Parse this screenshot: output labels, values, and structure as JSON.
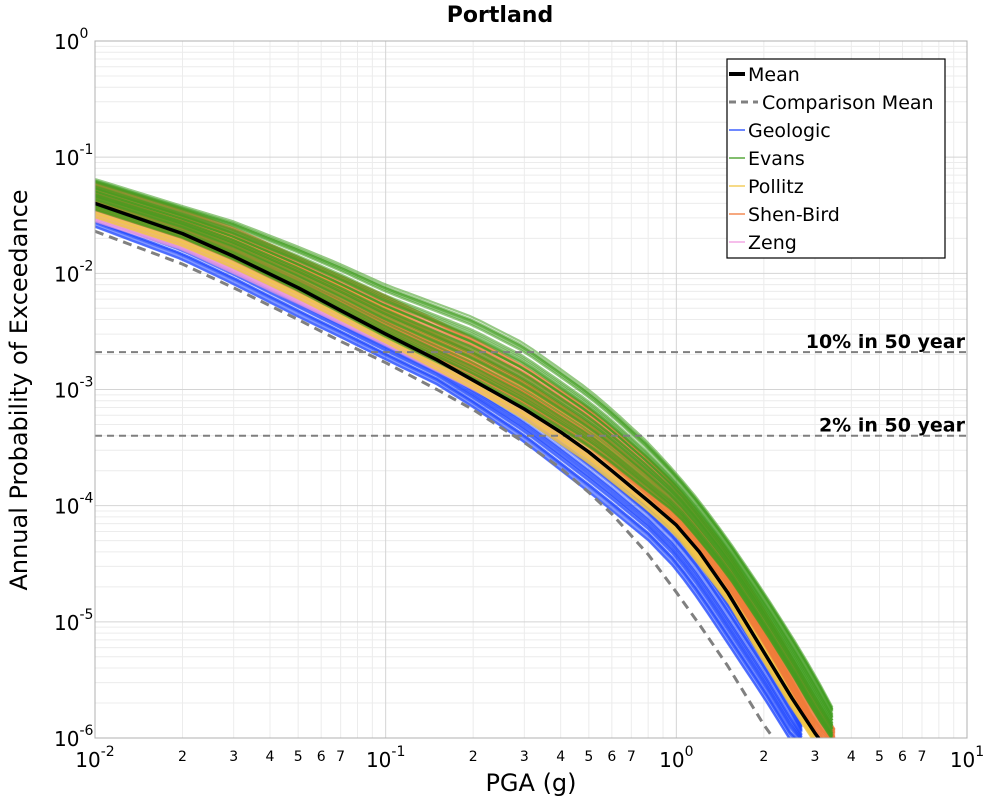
{
  "chart_data": {
    "type": "line",
    "title": "Portland",
    "xlabel": "PGA (g)",
    "ylabel": "Annual Probability of Exceedance",
    "x_scale": "log",
    "y_scale": "log",
    "xlim": [
      0.01,
      10
    ],
    "ylim": [
      1e-06,
      1
    ],
    "grid": true,
    "legend_position": "top-right",
    "x_major_ticks": [
      {
        "base": "10",
        "exp": "-2",
        "value": 0.01
      },
      {
        "base": "10",
        "exp": "-1",
        "value": 0.1
      },
      {
        "base": "10",
        "exp": "0",
        "value": 1
      },
      {
        "base": "10",
        "exp": "1",
        "value": 10
      }
    ],
    "x_minor_tick_labels": [
      "2",
      "3",
      "4",
      "5",
      "6",
      "7"
    ],
    "y_major_ticks": [
      {
        "base": "10",
        "exp": "0",
        "value": 1
      },
      {
        "base": "10",
        "exp": "-1",
        "value": 0.1
      },
      {
        "base": "10",
        "exp": "-2",
        "value": 0.01
      },
      {
        "base": "10",
        "exp": "-3",
        "value": 0.001
      },
      {
        "base": "10",
        "exp": "-4",
        "value": 0.0001
      },
      {
        "base": "10",
        "exp": "-5",
        "value": 1e-05
      },
      {
        "base": "10",
        "exp": "-6",
        "value": 1e-06
      }
    ],
    "reference_lines": [
      {
        "label": "10% in 50 year",
        "y": 0.0021
      },
      {
        "label": "2% in 50 year",
        "y": 0.0004
      }
    ],
    "series": [
      {
        "name": "Mean",
        "color": "#000000",
        "style": "solid",
        "x": [
          0.01,
          0.02,
          0.03,
          0.05,
          0.07,
          0.1,
          0.15,
          0.2,
          0.3,
          0.4,
          0.5,
          0.6,
          0.7,
          0.8,
          1.0,
          1.2,
          1.5,
          2.0,
          2.5,
          3.0,
          3.3
        ],
        "y": [
          0.04,
          0.022,
          0.014,
          0.0075,
          0.0048,
          0.003,
          0.0018,
          0.0012,
          0.00068,
          0.00043,
          0.00029,
          0.0002,
          0.000145,
          0.00011,
          6.8e-05,
          4e-05,
          1.8e-05,
          5.5e-06,
          2.2e-06,
          1.1e-06,
          8e-07
        ]
      },
      {
        "name": "Comparison Mean",
        "color": "#808080",
        "style": "dashed",
        "x": [
          0.01,
          0.02,
          0.03,
          0.05,
          0.07,
          0.1,
          0.15,
          0.2,
          0.3,
          0.4,
          0.5,
          0.6,
          0.8,
          1.0,
          1.2,
          1.5,
          2.0,
          2.3
        ],
        "y": [
          0.023,
          0.012,
          0.0075,
          0.004,
          0.0026,
          0.0017,
          0.001,
          0.00067,
          0.00035,
          0.00021,
          0.00013,
          8.5e-05,
          3.8e-05,
          1.8e-05,
          9.5e-06,
          4.2e-06,
          1.3e-06,
          8e-07
        ]
      },
      {
        "name": "Geologic",
        "color": "#1f47ff",
        "style": "band",
        "x": [
          0.01,
          0.02,
          0.03,
          0.05,
          0.07,
          0.1,
          0.15,
          0.2,
          0.3,
          0.4,
          0.5,
          0.6,
          0.8,
          1.0,
          1.2,
          1.5,
          2.0,
          2.5,
          2.7
        ],
        "y_low": [
          0.025,
          0.013,
          0.008,
          0.0042,
          0.0028,
          0.0018,
          0.0011,
          0.0007,
          0.00035,
          0.0002,
          0.00013,
          9e-05,
          5e-05,
          2.8e-05,
          1.5e-05,
          6.5e-06,
          2.2e-06,
          9e-07,
          8e-07
        ],
        "y_high": [
          0.05,
          0.028,
          0.018,
          0.0095,
          0.006,
          0.0038,
          0.0023,
          0.0015,
          0.00085,
          0.00052,
          0.00034,
          0.00024,
          0.00013,
          7.7e-05,
          4.5e-05,
          2e-05,
          6.5e-06,
          2.5e-06,
          1.5e-06
        ]
      },
      {
        "name": "Evans",
        "color": "#3f9c1f",
        "style": "band",
        "x": [
          0.01,
          0.02,
          0.03,
          0.05,
          0.07,
          0.1,
          0.15,
          0.2,
          0.3,
          0.4,
          0.5,
          0.6,
          0.8,
          1.0,
          1.2,
          1.5,
          2.0,
          2.5,
          3.0,
          3.5,
          3.8
        ],
        "y_low": [
          0.035,
          0.02,
          0.013,
          0.007,
          0.0045,
          0.0028,
          0.0017,
          0.0012,
          0.0007,
          0.00045,
          0.00032,
          0.00023,
          0.00013,
          8.5e-05,
          5e-05,
          2.5e-05,
          8.5e-06,
          3.5e-06,
          1.6e-06,
          9e-07,
          8e-07
        ],
        "y_high": [
          0.065,
          0.038,
          0.028,
          0.017,
          0.012,
          0.008,
          0.0055,
          0.0042,
          0.0025,
          0.0015,
          0.001,
          0.00068,
          0.00035,
          0.00019,
          0.00011,
          5.2e-05,
          1.8e-05,
          7.5e-06,
          3.5e-06,
          1.7e-06,
          1.1e-06
        ]
      },
      {
        "name": "Pollitz",
        "color": "#f2c646",
        "style": "band",
        "x": [
          0.01,
          0.02,
          0.03,
          0.05,
          0.1,
          0.2,
          0.3,
          0.5,
          0.8,
          1.0,
          1.5,
          2.0,
          2.5,
          3.0,
          3.3
        ],
        "y_low": [
          0.03,
          0.017,
          0.011,
          0.006,
          0.0025,
          0.001,
          0.00055,
          0.00023,
          9e-05,
          5.5e-05,
          1.5e-05,
          4.5e-06,
          1.8e-06,
          9e-07,
          8e-07
        ],
        "y_high": [
          0.058,
          0.032,
          0.021,
          0.012,
          0.0052,
          0.0021,
          0.0012,
          0.0005,
          0.00018,
          0.0001,
          2.8e-05,
          8.5e-06,
          3.2e-06,
          1.4e-06,
          1e-06
        ]
      },
      {
        "name": "Shen-Bird",
        "color": "#f07a3a",
        "style": "band",
        "x": [
          0.01,
          0.02,
          0.03,
          0.05,
          0.1,
          0.2,
          0.3,
          0.5,
          0.8,
          1.0,
          1.5,
          2.0,
          2.5,
          3.0,
          3.5
        ],
        "y_low": [
          0.035,
          0.02,
          0.013,
          0.007,
          0.003,
          0.0013,
          0.00075,
          0.00032,
          0.00012,
          7e-05,
          2e-05,
          6.5e-06,
          2.5e-06,
          1.1e-06,
          8e-07
        ],
        "y_high": [
          0.062,
          0.036,
          0.025,
          0.014,
          0.0065,
          0.0028,
          0.0016,
          0.0007,
          0.00026,
          0.00015,
          4.2e-05,
          1.3e-05,
          5e-06,
          2.2e-06,
          1.2e-06
        ]
      },
      {
        "name": "Zeng",
        "color": "#f29ce0",
        "style": "band",
        "x": [
          0.01,
          0.02,
          0.03,
          0.05,
          0.1,
          0.2,
          0.3,
          0.5,
          0.8,
          1.0,
          1.5,
          2.0,
          2.5,
          3.0
        ],
        "y_low": [
          0.028,
          0.016,
          0.01,
          0.0055,
          0.0024,
          0.001,
          0.00058,
          0.00025,
          0.0001,
          6e-05,
          1.7e-05,
          5.2e-06,
          2e-06,
          9e-07
        ],
        "y_high": [
          0.045,
          0.026,
          0.017,
          0.009,
          0.0039,
          0.0016,
          0.00092,
          0.0004,
          0.00015,
          8.8e-05,
          2.5e-05,
          7.5e-06,
          2.8e-06,
          1.2e-06
        ]
      }
    ]
  }
}
